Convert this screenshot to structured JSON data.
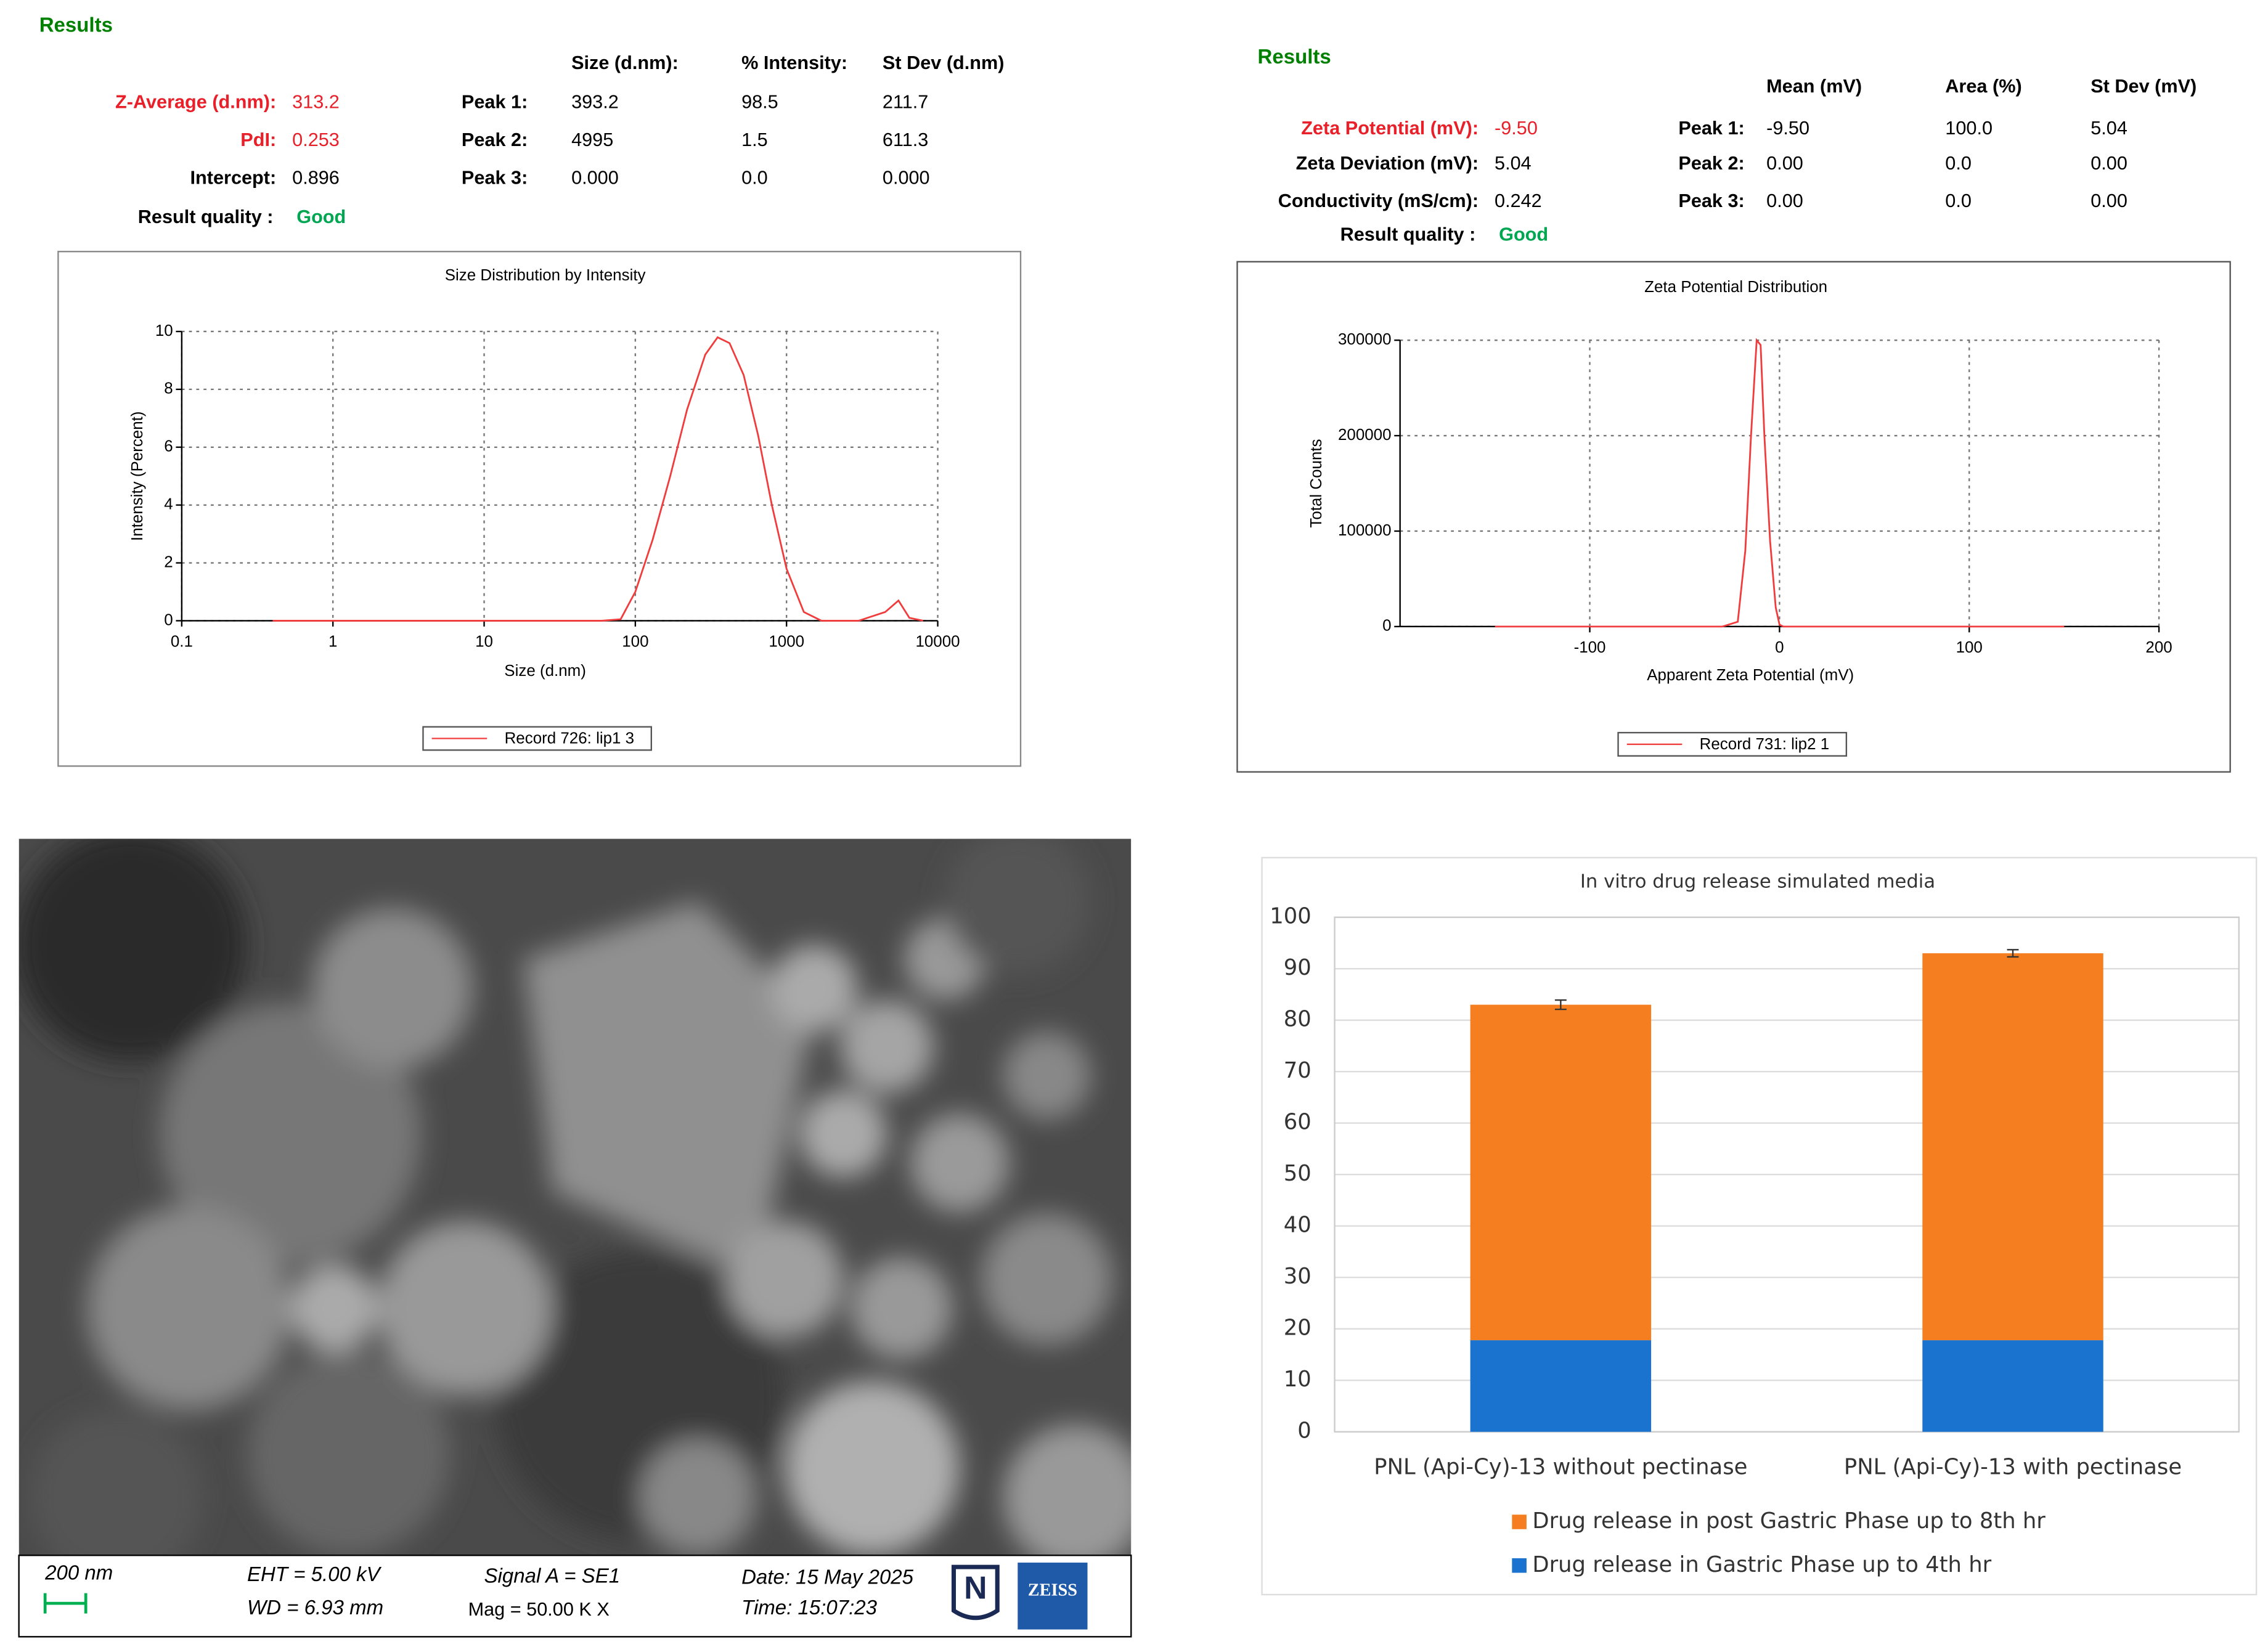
{
  "size_results": {
    "title": "Results",
    "summary": [
      [
        "Z-Average (d.nm):",
        "313.2"
      ],
      [
        "PdI:",
        "0.253"
      ],
      [
        "Intercept:",
        "0.896"
      ]
    ],
    "quality_label": "Result quality :",
    "quality": "Good",
    "header": [
      "Size (d.nm):",
      "% Intensity:",
      "St Dev (d.nm)"
    ],
    "peaks": [
      [
        "Peak 1:",
        "393.2",
        "98.5",
        "211.7"
      ],
      [
        "Peak 2:",
        "4995",
        "1.5",
        "611.3"
      ],
      [
        "Peak 3:",
        "0.000",
        "0.0",
        "0.000"
      ]
    ]
  },
  "zeta_results": {
    "title": "Results",
    "summary": [
      [
        "Zeta Potential (mV):",
        "-9.50"
      ],
      [
        "Zeta Deviation (mV):",
        "5.04"
      ],
      [
        "Conductivity (mS/cm):",
        "0.242"
      ]
    ],
    "quality_label": "Result quality :",
    "quality": "Good",
    "header": [
      "Mean (mV)",
      "Area (%)",
      "St Dev (mV)"
    ],
    "peaks": [
      [
        "Peak 1:",
        "-9.50",
        "100.0",
        "5.04"
      ],
      [
        "Peak 2:",
        "0.00",
        "0.0",
        "0.00"
      ],
      [
        "Peak 3:",
        "0.00",
        "0.0",
        "0.00"
      ]
    ]
  },
  "sem": {
    "scale": "200 nm",
    "eht": "EHT =  5.00 kV",
    "wd": "WD = 6.93 mm",
    "signal": "Signal A = SE1",
    "mag": "Mag =   50.00 K X",
    "date": "Date: 15 May 2025",
    "time": "Time: 15:07:23",
    "logo1": "N",
    "logo2": "ZEISS"
  },
  "chart_data": [
    {
      "type": "line",
      "title": "Size Distribution by Intensity",
      "xlabel": "Size (d.nm)",
      "ylabel": "Intensity (Percent)",
      "xscale": "log",
      "xlim": [
        0.1,
        10000
      ],
      "xticks": [
        0.1,
        1,
        10,
        100,
        1000,
        10000
      ],
      "ylim": [
        0,
        10
      ],
      "yticks": [
        0,
        2,
        4,
        6,
        8,
        10
      ],
      "grid": true,
      "x": [
        0.4,
        1,
        10,
        60,
        80,
        100,
        130,
        170,
        220,
        290,
        350,
        420,
        520,
        650,
        800,
        1000,
        1300,
        1700,
        3000,
        4500,
        5500,
        6500,
        8000
      ],
      "series": [
        {
          "name": "Record 726: lip1 3",
          "color": "#f03c3c",
          "values": [
            0,
            0,
            0,
            0,
            0.05,
            1.0,
            2.8,
            5.0,
            7.3,
            9.2,
            9.8,
            9.6,
            8.5,
            6.4,
            4.0,
            1.8,
            0.3,
            0,
            0,
            0.3,
            0.7,
            0.1,
            0
          ]
        }
      ]
    },
    {
      "type": "line",
      "title": "Zeta Potential Distribution",
      "xlabel": "Apparent Zeta Potential (mV)",
      "ylabel": "Total Counts",
      "xlim": [
        -200,
        200
      ],
      "xticks": [
        -100,
        0,
        100,
        200
      ],
      "ylim": [
        0,
        300000
      ],
      "yticks": [
        0,
        100000,
        200000,
        300000
      ],
      "grid": true,
      "x": [
        -150,
        -30,
        -22,
        -18,
        -15,
        -12,
        -10,
        -8,
        -5,
        -2,
        0,
        2,
        150
      ],
      "series": [
        {
          "name": "Record 731: lip2 1",
          "color": "#f03c3c",
          "values": [
            0,
            0,
            5000,
            80000,
            200000,
            300000,
            295000,
            200000,
            90000,
            20000,
            2000,
            0,
            0
          ]
        }
      ]
    },
    {
      "type": "bar",
      "stacked": true,
      "title": "In vitro drug release simulated media",
      "categories": [
        "PNL (Api-Cy)-13 without pectinase",
        "PNL (Api-Cy)-13 with pectinase"
      ],
      "ylim": [
        0,
        100
      ],
      "yticks": [
        0,
        10,
        20,
        30,
        40,
        50,
        60,
        70,
        80,
        90,
        100
      ],
      "grid": true,
      "series": [
        {
          "name": "Drug release in Gastric Phase up to 4th hr",
          "color": "#1a73cf",
          "values": [
            17.8,
            17.8
          ]
        },
        {
          "name": "Drug release in post Gastric Phase up to 8th hr",
          "color": "#f57f20",
          "values": [
            65.2,
            75.2
          ],
          "errors": [
            0.9,
            0.7
          ]
        }
      ]
    }
  ]
}
